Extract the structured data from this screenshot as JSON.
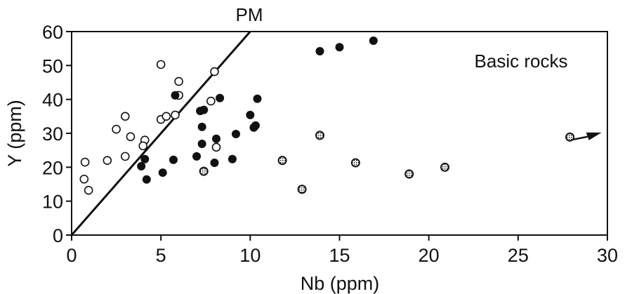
{
  "chart_data": {
    "type": "scatter",
    "title": "",
    "annotation": "Basic rocks",
    "xlabel": "Nb (ppm)",
    "ylabel": "Y (ppm)",
    "xlim": [
      0,
      30
    ],
    "ylim": [
      0,
      60
    ],
    "xticks": [
      0,
      5,
      10,
      15,
      20,
      25,
      30
    ],
    "yticks": [
      0,
      10,
      20,
      30,
      40,
      50,
      60
    ],
    "grid": false,
    "reference_line": {
      "label": "PM",
      "from": [
        0,
        0
      ],
      "to": [
        10,
        60
      ]
    },
    "series": [
      {
        "name": "open circles",
        "marker": "open-circle",
        "points": [
          [
            0.75,
            21.5
          ],
          [
            0.7,
            16.5
          ],
          [
            0.95,
            13.2
          ],
          [
            2.0,
            22.0
          ],
          [
            3.0,
            23.2
          ],
          [
            2.5,
            31.2
          ],
          [
            3.0,
            35.0
          ],
          [
            3.3,
            29.0
          ],
          [
            4.1,
            28.0
          ],
          [
            4.0,
            26.3
          ],
          [
            5.0,
            50.3
          ],
          [
            6.0,
            45.3
          ],
          [
            6.0,
            41.2
          ],
          [
            5.0,
            34.1
          ],
          [
            5.3,
            35.0
          ],
          [
            5.8,
            35.4
          ],
          [
            8.0,
            48.2
          ],
          [
            7.8,
            39.5
          ],
          [
            8.1,
            25.9
          ]
        ]
      },
      {
        "name": "filled circles",
        "marker": "filled-circle",
        "points": [
          [
            4.1,
            22.4
          ],
          [
            3.9,
            20.3
          ],
          [
            4.2,
            16.4
          ],
          [
            5.1,
            18.4
          ],
          [
            5.7,
            22.2
          ],
          [
            5.8,
            41.2
          ],
          [
            7.0,
            23.2
          ],
          [
            7.3,
            26.9
          ],
          [
            7.3,
            31.9
          ],
          [
            7.2,
            36.6
          ],
          [
            7.4,
            36.9
          ],
          [
            8.3,
            40.4
          ],
          [
            8.1,
            28.4
          ],
          [
            8.0,
            21.3
          ],
          [
            9.0,
            22.4
          ],
          [
            9.2,
            29.8
          ],
          [
            10.0,
            35.4
          ],
          [
            10.2,
            31.7
          ],
          [
            10.3,
            32.3
          ],
          [
            10.4,
            40.2
          ],
          [
            13.9,
            54.2
          ],
          [
            15.0,
            55.4
          ],
          [
            16.9,
            57.3
          ]
        ]
      },
      {
        "name": "hatched circles",
        "marker": "hatched-circle",
        "points": [
          [
            7.4,
            18.8
          ],
          [
            11.8,
            22.0
          ],
          [
            12.9,
            13.5
          ],
          [
            13.9,
            29.4
          ],
          [
            15.9,
            21.3
          ],
          [
            18.9,
            18.0
          ],
          [
            20.9,
            20.0
          ],
          [
            27.9,
            28.9
          ]
        ],
        "off_scale_arrow": {
          "from": [
            29.2,
            29.0
          ],
          "direction": "right"
        }
      }
    ]
  }
}
